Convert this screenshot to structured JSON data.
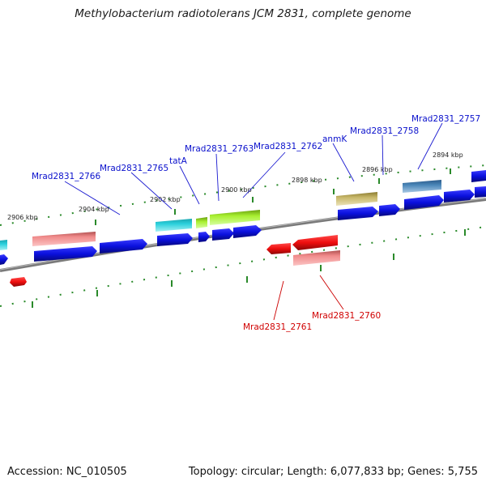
{
  "header": {
    "title": "Methylobacterium radiotolerans JCM 2831, complete genome"
  },
  "footer": {
    "accession": "Accession: NC_010505",
    "summary": "Topology: circular; Length: 6,077,833 bp; Genes: 5,755"
  },
  "colors": {
    "forward": "#0a10dd",
    "reverse": "#ee0e0e",
    "backbone": "#7a7a7a",
    "ticks": "#2a8a2a"
  },
  "scale_labels": [
    "2906 kbp",
    "2904 kbp",
    "2902 kbp",
    "2900 kbp",
    "2898 kbp",
    "2896 kbp",
    "2894 kbp"
  ],
  "gene_labels": {
    "forward": [
      "Mrad2831_2766",
      "Mrad2831_2765",
      "tatA",
      "Mrad2831_2763",
      "Mrad2831_2762",
      "anmK",
      "Mrad2831_2758",
      "Mrad2831_2757"
    ],
    "reverse": [
      "Mrad2831_2761",
      "Mrad2831_2760"
    ]
  }
}
